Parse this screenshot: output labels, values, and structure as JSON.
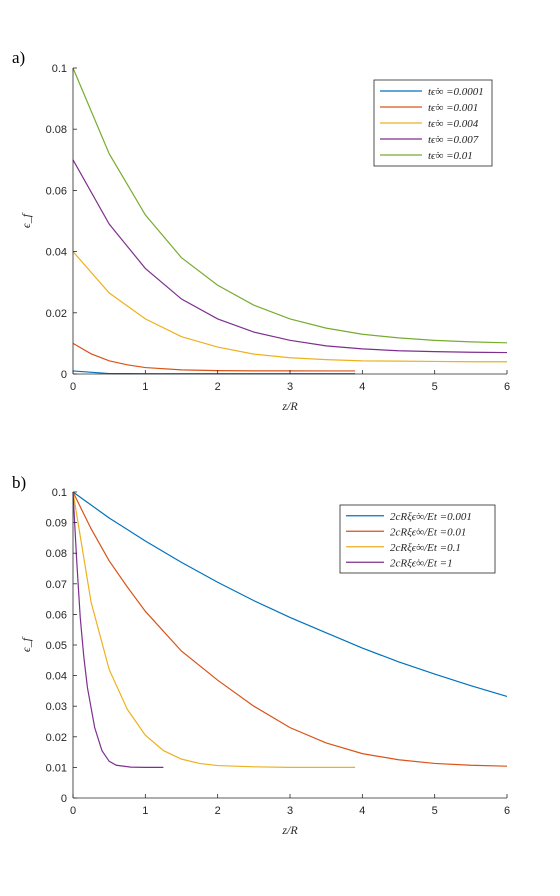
{
  "chart_data": [
    {
      "panel_label": "a)",
      "type": "line",
      "xlabel": "z/R",
      "ylabel": "ϵ_f",
      "xlim": [
        0,
        6
      ],
      "ylim": [
        0,
        0.1
      ],
      "xticks": [
        0,
        1,
        2,
        3,
        4,
        5,
        6
      ],
      "yticks": [
        0,
        0.02,
        0.04,
        0.06,
        0.08,
        0.1
      ],
      "tick_labels_x": [
        "0",
        "1",
        "2",
        "3",
        "4",
        "5",
        "6"
      ],
      "tick_labels_y": [
        "0",
        "0.02",
        "0.04",
        "0.06",
        "0.08",
        "0.1"
      ],
      "legend_position": "top-right",
      "series": [
        {
          "name": "tϵ̇∞ =0.0001",
          "color": "#0072BD",
          "x": [
            0,
            0.5,
            1,
            1.5,
            2,
            2.5,
            3,
            3.5,
            3.9
          ],
          "values": [
            0.001,
            0.00015,
            0.0001,
            0.0001,
            0.0001,
            0.0001,
            0.0001,
            0.0001,
            0.0001
          ]
        },
        {
          "name": "tϵ̇∞ =0.001",
          "color": "#D95319",
          "x": [
            0,
            0.25,
            0.5,
            0.75,
            1,
            1.5,
            2,
            2.5,
            3,
            3.5,
            3.9
          ],
          "values": [
            0.01,
            0.0066,
            0.0043,
            0.003,
            0.0021,
            0.00135,
            0.0011,
            0.00103,
            0.00101,
            0.001,
            0.001
          ]
        },
        {
          "name": "tϵ̇∞ =0.004",
          "color": "#EDB120",
          "x": [
            0,
            0.5,
            1,
            1.5,
            2,
            2.5,
            3,
            3.5,
            4,
            4.5,
            5,
            5.5,
            6
          ],
          "values": [
            0.04,
            0.0265,
            0.018,
            0.0122,
            0.0088,
            0.0065,
            0.0053,
            0.0047,
            0.0043,
            0.0042,
            0.0041,
            0.004,
            0.004
          ]
        },
        {
          "name": "tϵ̇∞ =0.007",
          "color": "#7E2F8E",
          "x": [
            0,
            0.5,
            1,
            1.5,
            2,
            2.5,
            3,
            3.5,
            4,
            4.5,
            5,
            5.5,
            6
          ],
          "values": [
            0.07,
            0.049,
            0.0345,
            0.0245,
            0.018,
            0.0137,
            0.011,
            0.0092,
            0.0082,
            0.0076,
            0.0073,
            0.0071,
            0.007
          ]
        },
        {
          "name": "tϵ̇∞ =0.01",
          "color": "#77AC30",
          "x": [
            0,
            0.5,
            1,
            1.5,
            2,
            2.5,
            3,
            3.5,
            4,
            4.5,
            5,
            5.5,
            6
          ],
          "values": [
            0.1,
            0.072,
            0.052,
            0.038,
            0.029,
            0.0225,
            0.018,
            0.015,
            0.013,
            0.0118,
            0.011,
            0.0105,
            0.0102
          ]
        }
      ]
    },
    {
      "panel_label": "b)",
      "type": "line",
      "xlabel": "z/R",
      "ylabel": "ϵ_f",
      "xlim": [
        0,
        6
      ],
      "ylim": [
        0,
        0.1
      ],
      "xticks": [
        0,
        1,
        2,
        3,
        4,
        5,
        6
      ],
      "yticks": [
        0,
        0.01,
        0.02,
        0.03,
        0.04,
        0.05,
        0.06,
        0.07,
        0.08,
        0.09,
        0.1
      ],
      "tick_labels_x": [
        "0",
        "1",
        "2",
        "3",
        "4",
        "5",
        "6"
      ],
      "tick_labels_y": [
        "0",
        "0.01",
        "0.02",
        "0.03",
        "0.04",
        "0.05",
        "0.06",
        "0.07",
        "0.08",
        "0.09",
        "0.1"
      ],
      "legend_position": "top-right",
      "series": [
        {
          "name": "2cRξϵ̇∞/Et =0.001",
          "color": "#0072BD",
          "x": [
            0,
            0.5,
            1,
            1.5,
            2,
            2.5,
            3,
            3.5,
            4,
            4.5,
            5,
            5.5,
            6
          ],
          "values": [
            0.1,
            0.0915,
            0.084,
            0.077,
            0.0705,
            0.0645,
            0.059,
            0.054,
            0.049,
            0.0445,
            0.0405,
            0.0367,
            0.0332
          ]
        },
        {
          "name": "2cRξϵ̇∞/Et =0.01",
          "color": "#D95319",
          "x": [
            0,
            0.25,
            0.5,
            0.75,
            1,
            1.5,
            2,
            2.5,
            3,
            3.5,
            4,
            4.5,
            5,
            5.5,
            6
          ],
          "values": [
            0.1,
            0.088,
            0.0775,
            0.069,
            0.061,
            0.048,
            0.0385,
            0.03,
            0.023,
            0.018,
            0.0145,
            0.0125,
            0.0113,
            0.0107,
            0.0104
          ]
        },
        {
          "name": "2cRξϵ̇∞/Et =0.1",
          "color": "#EDB120",
          "x": [
            0,
            0.25,
            0.5,
            0.75,
            1,
            1.25,
            1.5,
            1.75,
            2,
            2.5,
            3,
            3.5,
            3.9
          ],
          "values": [
            0.1,
            0.064,
            0.042,
            0.029,
            0.0205,
            0.0155,
            0.0127,
            0.0113,
            0.0106,
            0.0102,
            0.01,
            0.01,
            0.01
          ]
        },
        {
          "name": "2cRξϵ̇∞/Et =1",
          "color": "#7E2F8E",
          "x": [
            0,
            0.05,
            0.1,
            0.15,
            0.2,
            0.3,
            0.4,
            0.5,
            0.6,
            0.8,
            1.0,
            1.25
          ],
          "values": [
            0.1,
            0.078,
            0.059,
            0.046,
            0.036,
            0.023,
            0.0155,
            0.012,
            0.0107,
            0.0101,
            0.01,
            0.01
          ]
        }
      ]
    }
  ]
}
